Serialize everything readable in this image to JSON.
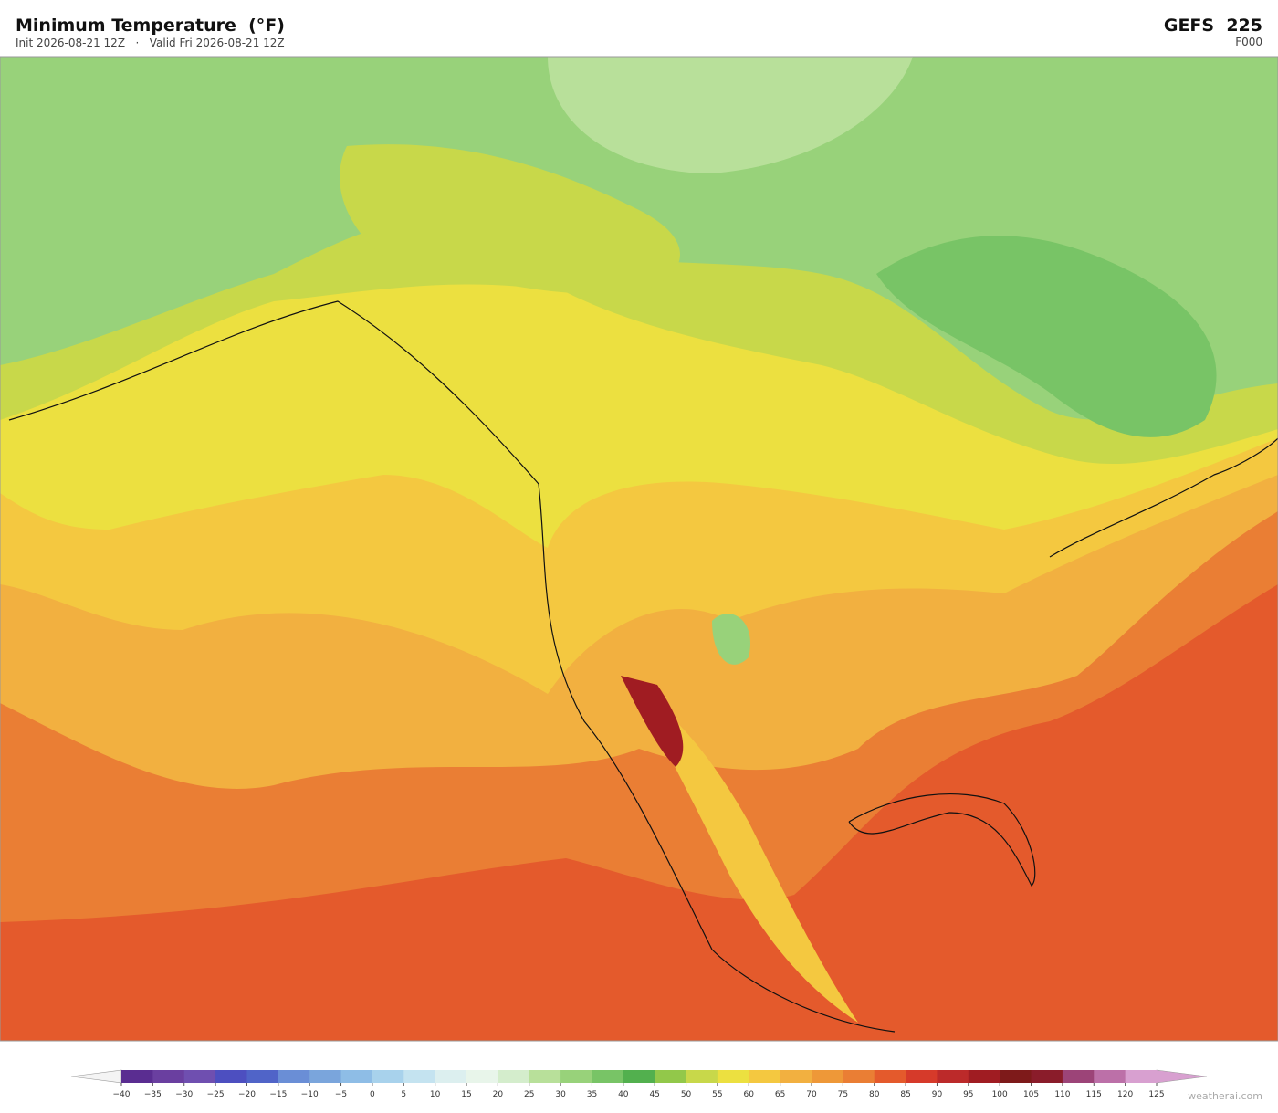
{
  "header": {
    "title": "Minimum Temperature  (°F)",
    "subtitle": "Init 2026-08-21 12Z   ·   Valid Fri 2026-08-21 12Z",
    "model": "GEFS  225",
    "forecast_hour": "F000"
  },
  "colorbar": {
    "ticks": [
      {
        "value": -40,
        "label": "−40"
      },
      {
        "value": -35,
        "label": "−35"
      },
      {
        "value": -30,
        "label": "−30"
      },
      {
        "value": -25,
        "label": "−25"
      },
      {
        "value": -20,
        "label": "−20"
      },
      {
        "value": -15,
        "label": "−15"
      },
      {
        "value": -10,
        "label": "−10"
      },
      {
        "value": -5,
        "label": "−5"
      },
      0,
      5,
      10,
      15,
      20,
      25,
      30,
      35,
      40,
      45,
      50,
      55,
      60,
      65,
      70,
      75,
      80,
      85,
      90,
      95,
      100,
      105,
      110,
      115,
      120,
      125
    ],
    "colors": [
      "#5a2d91",
      "#6a3fa0",
      "#6f4fb0",
      "#4d4fc0",
      "#5064c8",
      "#6a8ed6",
      "#7aa5dc",
      "#8ebde6",
      "#a8d2ec",
      "#c4e3f0",
      "#dcefef",
      "#e8f5ea",
      "#d4edcc",
      "#b8e09a",
      "#98d27a",
      "#78c466",
      "#52b04e",
      "#92c84a",
      "#c8d84a",
      "#ece040",
      "#f4c840",
      "#f2b040",
      "#ee9838",
      "#ea7e34",
      "#e45a2c",
      "#d63a2a",
      "#bc2a2a",
      "#a01c22",
      "#7e1a1a",
      "#8a1c2a",
      "#9c4478",
      "#bc70a8",
      "#d8a0d0"
    ],
    "under_color": "#f4f4f4",
    "over_color": "#d8a0d0"
  },
  "watermark": "weatherai.com"
}
